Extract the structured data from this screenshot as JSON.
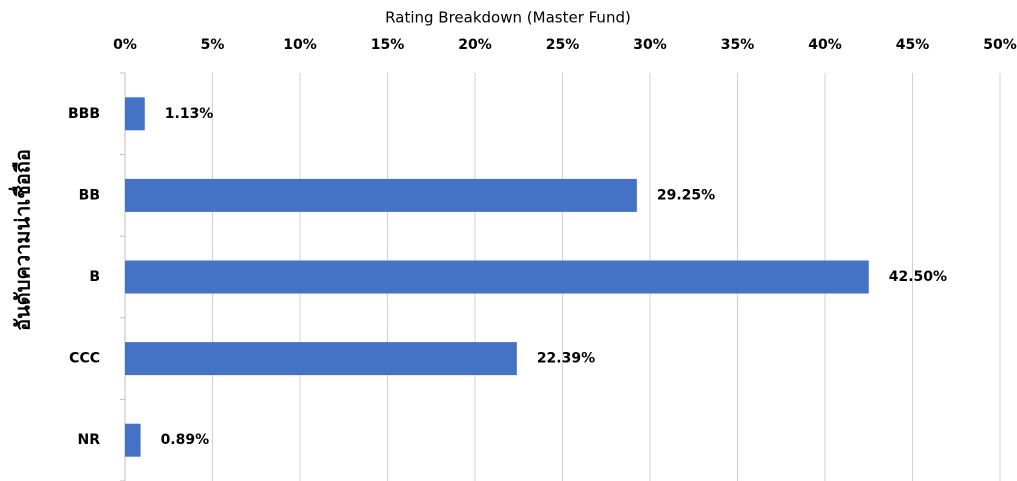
{
  "chart_data": {
    "type": "bar",
    "orientation": "horizontal",
    "title": "Rating Breakdown (Master Fund)",
    "y_label": "อันดับความน่าเชื่อถือ",
    "categories": [
      "BBB",
      "BB",
      "B",
      "CCC",
      "NR"
    ],
    "values": [
      1.13,
      29.25,
      42.5,
      22.39,
      0.89
    ],
    "value_labels": [
      "1.13%",
      "29.25%",
      "42.50%",
      "22.39%",
      "0.89%"
    ],
    "color": "#4472c4",
    "xlim": [
      0,
      50
    ],
    "xticks": [
      {
        "value": 0,
        "label": "0%"
      },
      {
        "value": 5,
        "label": "5%"
      },
      {
        "value": 10,
        "label": "10%"
      },
      {
        "value": 15,
        "label": "15%"
      },
      {
        "value": 20,
        "label": "20%"
      },
      {
        "value": 25,
        "label": "25%"
      },
      {
        "value": 30,
        "label": "30%"
      },
      {
        "value": 35,
        "label": "35%"
      },
      {
        "value": 40,
        "label": "40%"
      },
      {
        "value": 45,
        "label": "45%"
      },
      {
        "value": 50,
        "label": "50%"
      }
    ],
    "grid": true
  }
}
